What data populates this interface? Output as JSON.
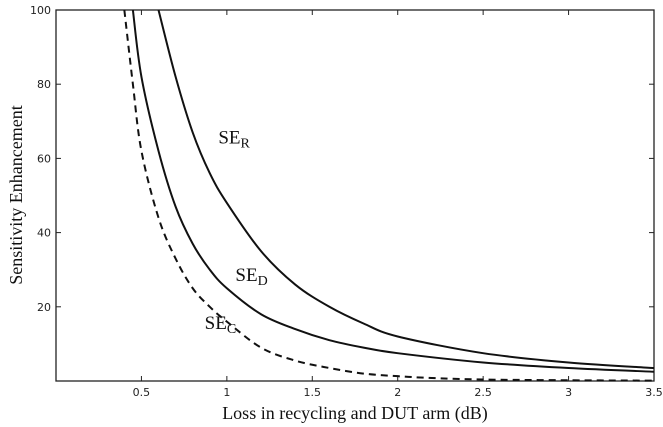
{
  "chart_data": {
    "type": "line",
    "title": "",
    "xlabel": "Loss in recycling and DUT arm (dB)",
    "ylabel": "Sensitivity Enhancement",
    "xlim": [
      0,
      3.5
    ],
    "ylim": [
      0,
      100
    ],
    "x_ticks": [
      0.5,
      1,
      1.5,
      2,
      2.5,
      3,
      3.5
    ],
    "x_tick_labels": [
      "0.5",
      "1",
      "1.5",
      "2",
      "2.5",
      "3",
      "3.5"
    ],
    "y_ticks": [
      20,
      40,
      60,
      80,
      100
    ],
    "y_tick_labels": [
      "20",
      "40",
      "60",
      "80",
      "100"
    ],
    "grid": false,
    "series": [
      {
        "base": "SE",
        "sub": "R",
        "style": "solid",
        "color": "#111111",
        "label_at": [
          0.95,
          64
        ],
        "x": [
          0.6,
          0.7,
          0.8,
          0.9,
          1.0,
          1.2,
          1.4,
          1.6,
          1.8,
          2.0,
          2.5,
          3.0,
          3.5
        ],
        "y": [
          100,
          82,
          67,
          56,
          48,
          35,
          26,
          20,
          15.5,
          12,
          7.5,
          5,
          3.5
        ]
      },
      {
        "base": "SE",
        "sub": "D",
        "style": "solid",
        "color": "#111111",
        "label_at": [
          1.05,
          27
        ],
        "x": [
          0.45,
          0.5,
          0.6,
          0.7,
          0.8,
          0.9,
          1.0,
          1.2,
          1.4,
          1.6,
          1.8,
          2.0,
          2.5,
          3.0,
          3.5
        ],
        "y": [
          100,
          82,
          62,
          47,
          37,
          30,
          25,
          18,
          14,
          11,
          9,
          7.5,
          5,
          3.5,
          2.5
        ]
      },
      {
        "base": "SE",
        "sub": "C",
        "style": "dashed",
        "color": "#111111",
        "label_at": [
          0.87,
          14
        ],
        "x": [
          0.4,
          0.45,
          0.5,
          0.6,
          0.7,
          0.8,
          0.9,
          1.0,
          1.2,
          1.4,
          1.6,
          1.8,
          2.0,
          2.2,
          2.5,
          3.0,
          3.5
        ],
        "y": [
          100,
          80,
          62,
          44,
          33,
          25,
          20,
          16,
          9,
          5.5,
          3.5,
          2,
          1.3,
          0.8,
          0.4,
          0.2,
          0.1
        ]
      }
    ]
  }
}
